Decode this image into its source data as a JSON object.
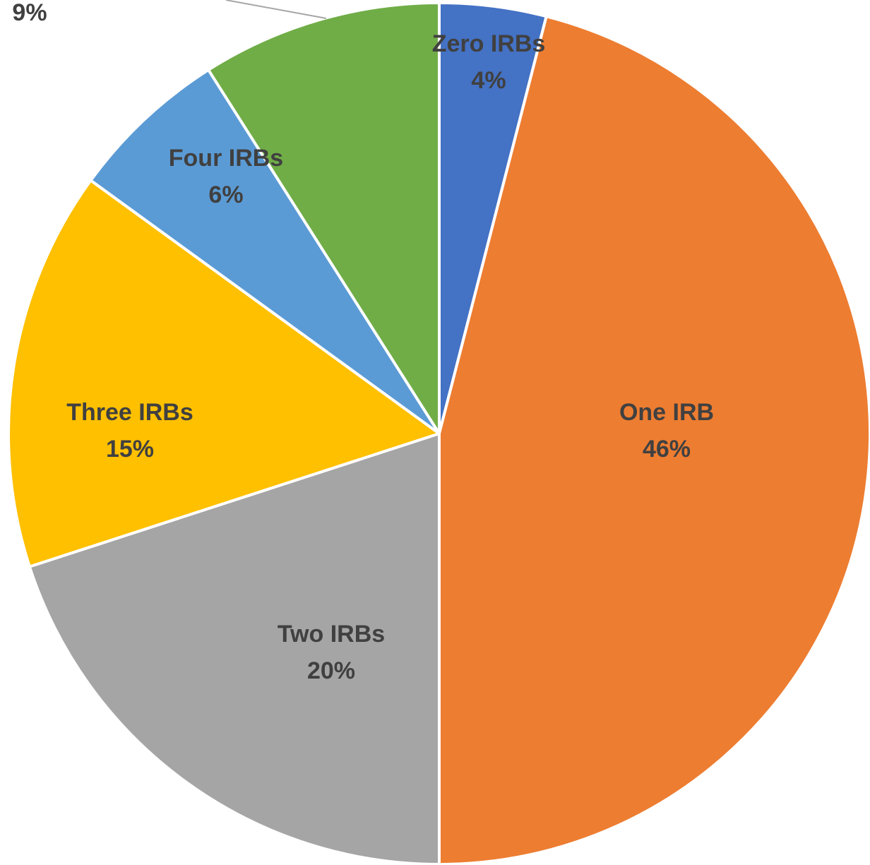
{
  "chart_data": {
    "type": "pie",
    "title": "",
    "start": "top",
    "direction": "clockwise",
    "slices": [
      {
        "category": "Zero IRBs",
        "value": 4,
        "value_label": "4%",
        "color": "#4472c4",
        "show_category": true
      },
      {
        "category": "One IRB",
        "value": 46,
        "value_label": "46%",
        "color": "#ed7d31",
        "show_category": true
      },
      {
        "category": "Two IRBs",
        "value": 20,
        "value_label": "20%",
        "color": "#a5a5a5",
        "show_category": true
      },
      {
        "category": "Three IRBs",
        "value": 15,
        "value_label": "15%",
        "color": "#ffc000",
        "show_category": true
      },
      {
        "category": "Four IRBs",
        "value": 6,
        "value_label": "6%",
        "color": "#5b9bd5",
        "show_category": true
      },
      {
        "category": "",
        "value": 9,
        "value_label": "9%",
        "color": "#70ad47",
        "show_category": false
      }
    ]
  }
}
